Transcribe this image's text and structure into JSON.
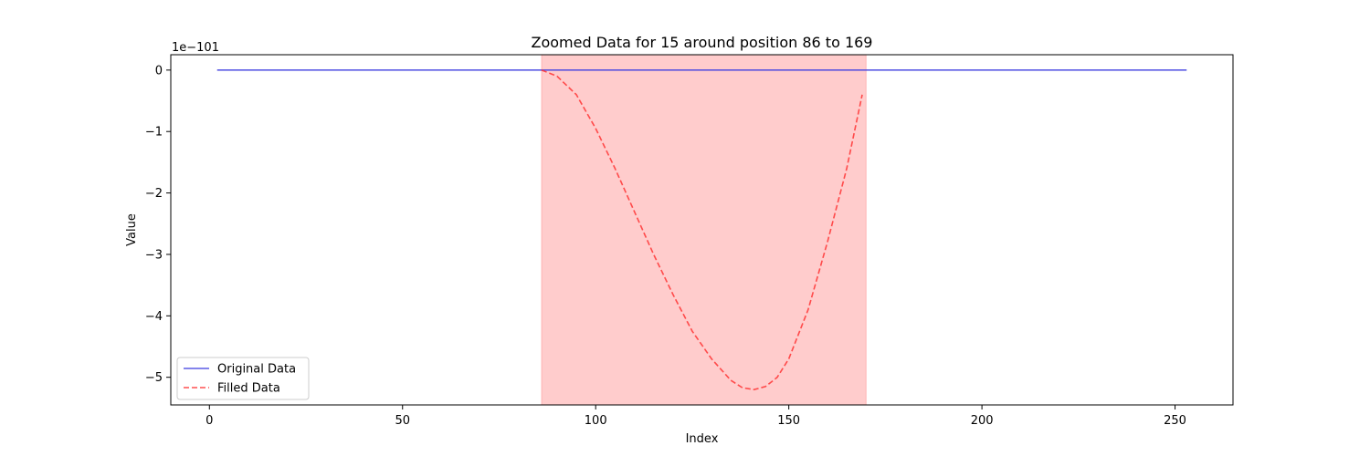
{
  "chart_data": {
    "type": "line",
    "title": "Zoomed Data for 15 around position 86 to 169",
    "xlabel": "Index",
    "ylabel": "Value",
    "offset_label": "1e−101",
    "xlim": [
      -10,
      265
    ],
    "ylim": [
      -5.45,
      0.25
    ],
    "xticks": [
      0,
      50,
      100,
      150,
      200,
      250
    ],
    "yticks": [
      0,
      -1,
      -2,
      -3,
      -4,
      -5
    ],
    "xtick_labels": [
      "0",
      "50",
      "100",
      "150",
      "200",
      "250"
    ],
    "ytick_labels": [
      "0",
      "−1",
      "−2",
      "−3",
      "−4",
      "−5"
    ],
    "highlight_span": {
      "x0": 86,
      "x1": 170,
      "color": "#ff9999"
    },
    "legend_position": "lower-left",
    "grid": false,
    "series": [
      {
        "name": "Original Data",
        "color": "#4040e0",
        "style": "solid",
        "x": [
          2,
          253
        ],
        "y": [
          0,
          0
        ]
      },
      {
        "name": "Filled Data",
        "color": "#ff3333",
        "style": "dashed",
        "x": [
          86,
          90,
          95,
          100,
          105,
          110,
          115,
          120,
          125,
          130,
          135,
          138,
          141,
          144,
          147,
          150,
          155,
          160,
          165,
          169
        ],
        "y": [
          0,
          -0.1,
          -0.4,
          -0.95,
          -1.6,
          -2.3,
          -3.0,
          -3.65,
          -4.25,
          -4.7,
          -5.05,
          -5.17,
          -5.2,
          -5.15,
          -5.0,
          -4.7,
          -3.9,
          -2.8,
          -1.6,
          -0.4
        ]
      }
    ]
  }
}
